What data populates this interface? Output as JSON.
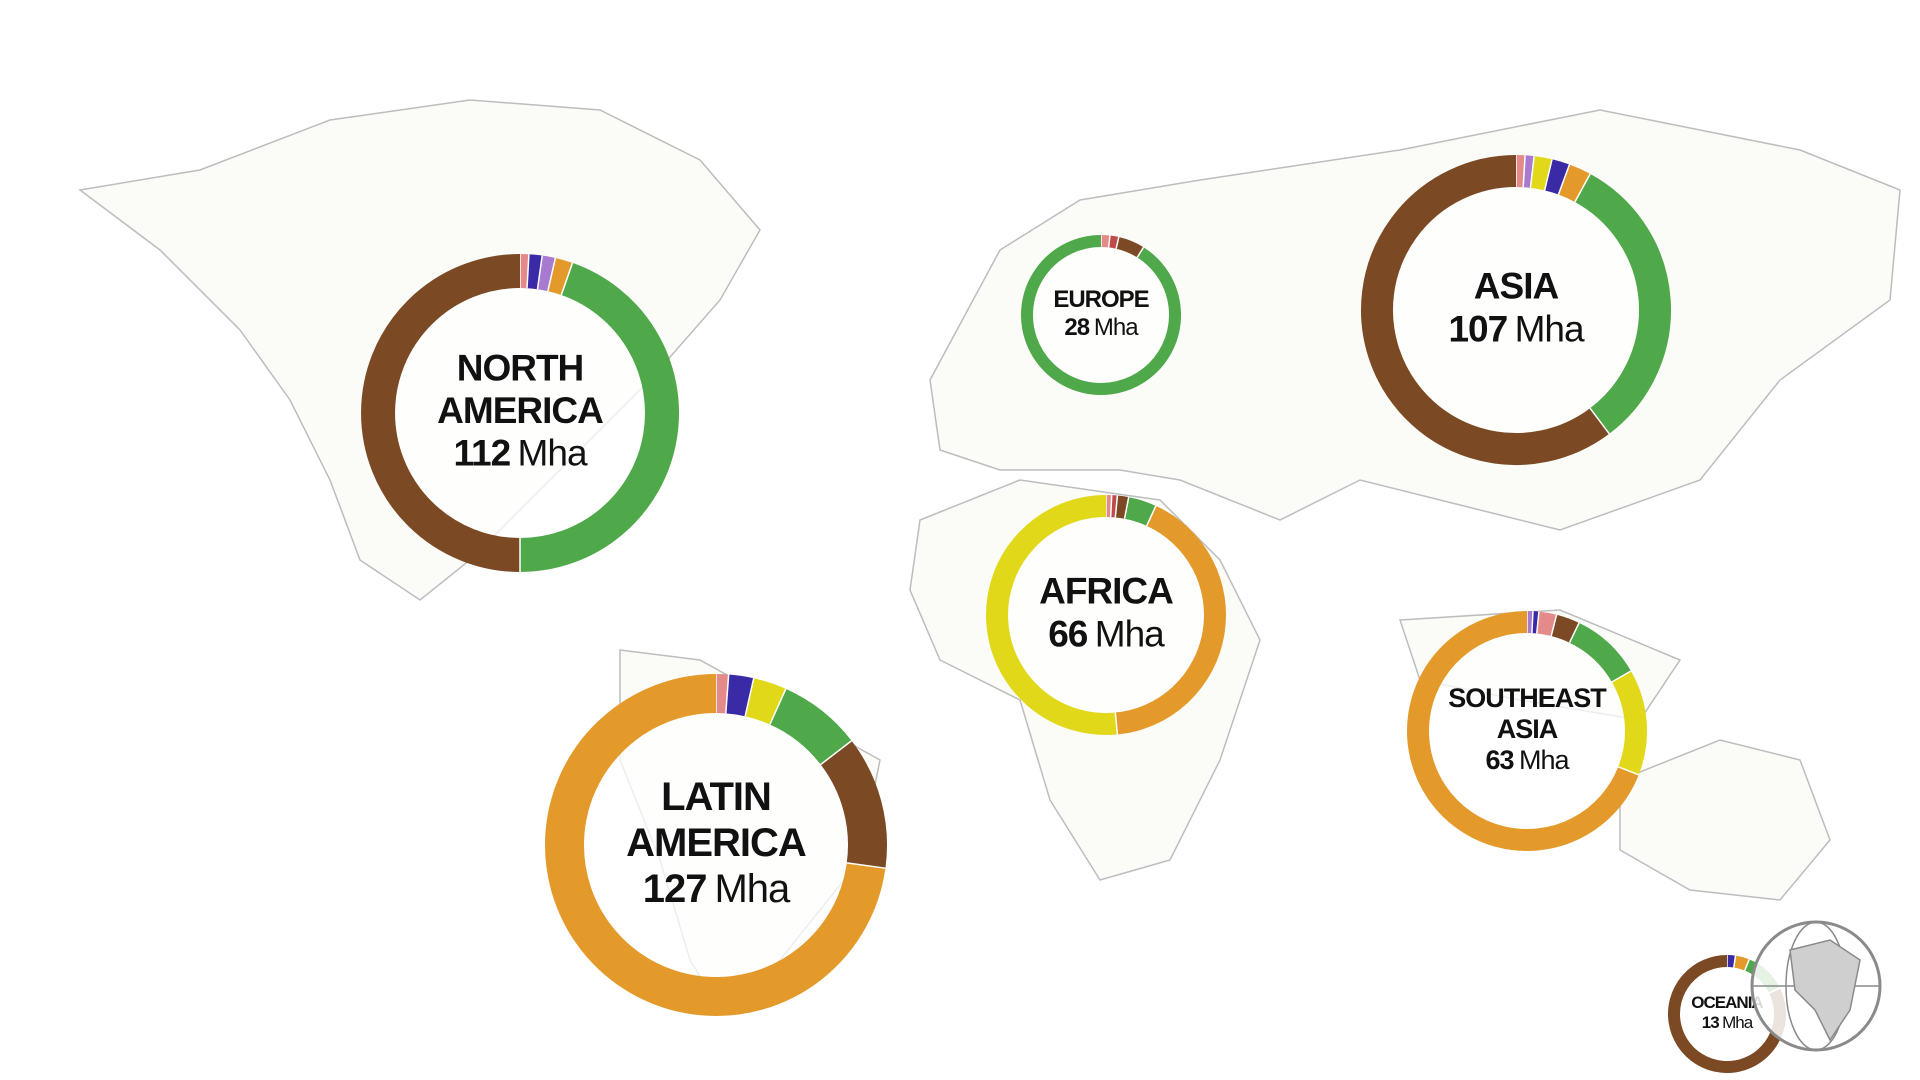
{
  "map": {
    "regions": [
      {
        "name_lines": [
          "NORTH",
          "AMERICA"
        ],
        "value": 112,
        "unit": "Mha",
        "segments": [
          {
            "color": "#e58a8a",
            "value": 1
          },
          {
            "color": "#3b2aa6",
            "value": 1.5
          },
          {
            "color": "#a77ad0",
            "value": 1.5
          },
          {
            "color": "#e39a2b",
            "value": 2
          },
          {
            "color": "#4fa84a",
            "value": 50
          },
          {
            "color": "#7b4a24",
            "value": 56
          }
        ]
      },
      {
        "name_lines": [
          "EUROPE"
        ],
        "value": 28,
        "unit": "Mha",
        "segments": [
          {
            "color": "#e58a8a",
            "value": 0.5
          },
          {
            "color": "#c04a4a",
            "value": 0.5
          },
          {
            "color": "#7b4a24",
            "value": 1.5
          },
          {
            "color": "#4fa84a",
            "value": 25.5
          }
        ]
      },
      {
        "name_lines": [
          "ASIA"
        ],
        "value": 107,
        "unit": "Mha",
        "segments": [
          {
            "color": "#e58a8a",
            "value": 1
          },
          {
            "color": "#a77ad0",
            "value": 1
          },
          {
            "color": "#e2d81a",
            "value": 2
          },
          {
            "color": "#3b2aa6",
            "value": 2
          },
          {
            "color": "#e39a2b",
            "value": 2.5
          },
          {
            "color": "#4fa84a",
            "value": 34
          },
          {
            "color": "#7b4a24",
            "value": 64.5
          }
        ]
      },
      {
        "name_lines": [
          "AFRICA"
        ],
        "value": 66,
        "unit": "Mha",
        "segments": [
          {
            "color": "#e58a8a",
            "value": 0.5
          },
          {
            "color": "#c04a4a",
            "value": 0.5
          },
          {
            "color": "#7b4a24",
            "value": 1
          },
          {
            "color": "#4fa84a",
            "value": 2.5
          },
          {
            "color": "#e39a2b",
            "value": 27.5
          },
          {
            "color": "#e2d81a",
            "value": 34
          }
        ]
      },
      {
        "name_lines": [
          "LATIN",
          "AMERICA"
        ],
        "value": 127,
        "unit": "Mha",
        "segments": [
          {
            "color": "#e58a8a",
            "value": 1.5
          },
          {
            "color": "#3b2aa6",
            "value": 3
          },
          {
            "color": "#e2d81a",
            "value": 4
          },
          {
            "color": "#4fa84a",
            "value": 10
          },
          {
            "color": "#7b4a24",
            "value": 16
          },
          {
            "color": "#e39a2b",
            "value": 92.5
          }
        ]
      },
      {
        "name_lines": [
          "SOUTHEAST",
          "ASIA"
        ],
        "value": 63,
        "unit": "Mha",
        "segments": [
          {
            "color": "#a77ad0",
            "value": 0.5
          },
          {
            "color": "#3b2aa6",
            "value": 0.5
          },
          {
            "color": "#e58a8a",
            "value": 1.5
          },
          {
            "color": "#7b4a24",
            "value": 2
          },
          {
            "color": "#4fa84a",
            "value": 6
          },
          {
            "color": "#e2d81a",
            "value": 9
          },
          {
            "color": "#e39a2b",
            "value": 43.5
          }
        ]
      },
      {
        "name_lines": [
          "OCEANIA"
        ],
        "value": 13,
        "unit": "Mha",
        "segments": [
          {
            "color": "#3b2aa6",
            "value": 0.3
          },
          {
            "color": "#e39a2b",
            "value": 0.5
          },
          {
            "color": "#4fa84a",
            "value": 1.5
          },
          {
            "color": "#7b4a24",
            "value": 10.7
          }
        ]
      }
    ]
  }
}
